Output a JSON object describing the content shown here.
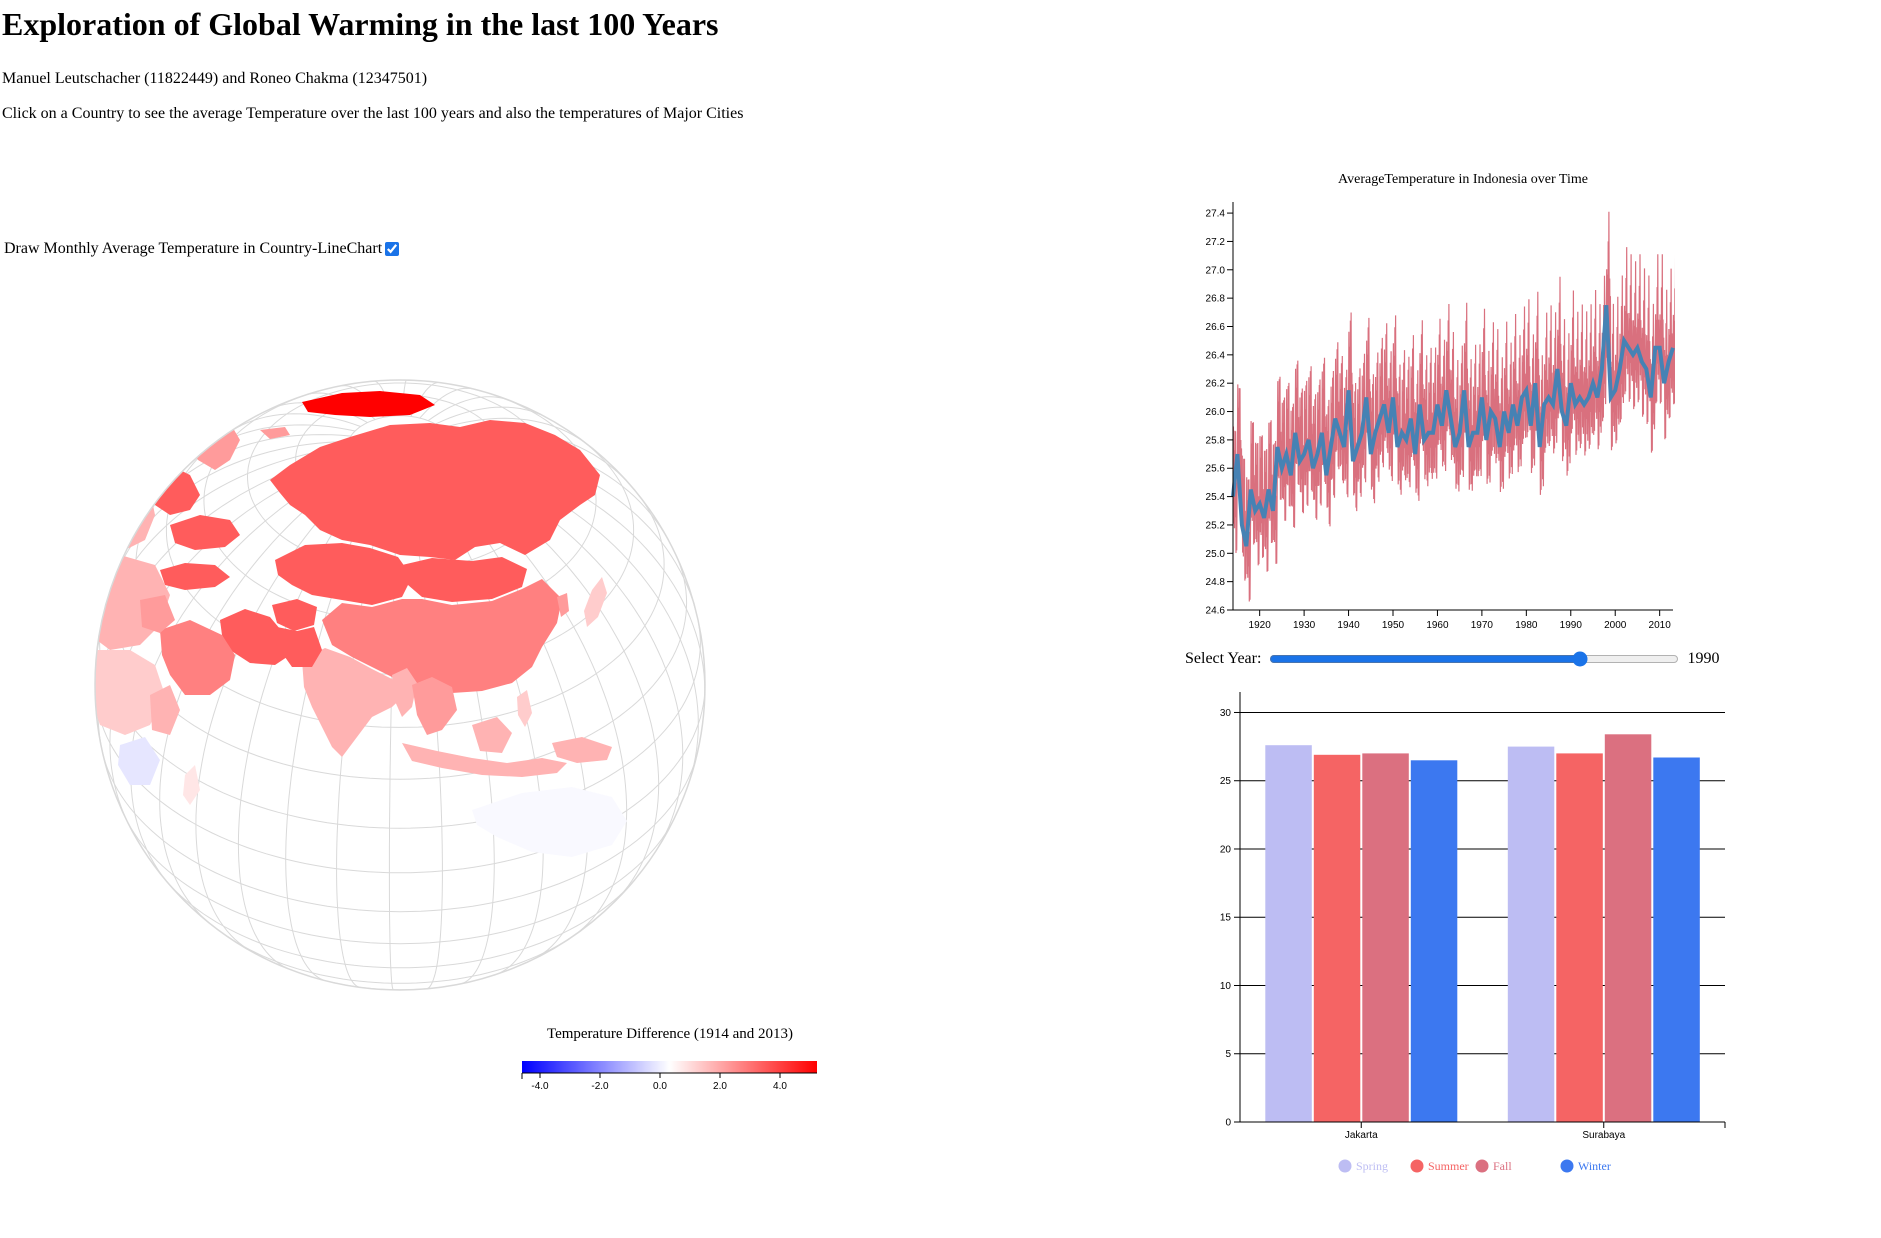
{
  "header": {
    "title": "Exploration of Global Warming in the last 100 Years",
    "authors": "Manuel Leutschacher (11822449) and Roneo Chakma (12347501)",
    "instructions": "Click on a Country to see the average Temperature over the last 100 years and also the temperatures of Major Cities"
  },
  "controls": {
    "draw_monthly_label": "Draw Monthly Average Temperature in Country-LineChart",
    "draw_monthly_checked": true,
    "year_label": "Select Year:",
    "year_value": "1990",
    "year_min": 1914,
    "year_max": 2013
  },
  "map": {
    "legend_title": "Temperature Difference (1914 and 2013)",
    "legend_ticks": [
      "-4.0",
      "-2.0",
      "0.0",
      "2.0",
      "4.0"
    ],
    "scale_colors": {
      "negative": "#0000ff",
      "zero": "#ffffff",
      "positive": "#ff0000"
    },
    "graticule_color": "#d9d9d9"
  },
  "chart_data": [
    {
      "type": "line",
      "title": "AverageTemperature in Indonesia over Time",
      "xlim": [
        1914,
        2013
      ],
      "ylim": [
        24.6,
        27.45
      ],
      "x_ticks": [
        "1920",
        "1930",
        "1940",
        "1950",
        "1960",
        "1970",
        "1980",
        "1990",
        "2000",
        "2010"
      ],
      "y_ticks": [
        "24.6",
        "24.8",
        "25.0",
        "25.2",
        "25.4",
        "25.6",
        "25.8",
        "26.0",
        "26.2",
        "26.4",
        "26.6",
        "26.8",
        "27.0",
        "27.2",
        "27.4"
      ],
      "monthly_color": "#d9707e",
      "yearly_color": "#4682b4",
      "series": [
        {
          "x": [
            1914,
            1915,
            1916,
            1917,
            1918,
            1919,
            1920,
            1921,
            1922,
            1923,
            1924,
            1925,
            1926,
            1927,
            1928,
            1929,
            1930,
            1931,
            1932,
            1933,
            1934,
            1935,
            1936,
            1937,
            1938,
            1939,
            1940,
            1941,
            1942,
            1943,
            1944,
            1945,
            1946,
            1947,
            1948,
            1949,
            1950,
            1951,
            1952,
            1953,
            1954,
            1955,
            1956,
            1957,
            1958,
            1959,
            1960,
            1961,
            1962,
            1963,
            1964,
            1965,
            1966,
            1967,
            1968,
            1969,
            1970,
            1971,
            1972,
            1973,
            1974,
            1975,
            1976,
            1977,
            1978,
            1979,
            1980,
            1981,
            1982,
            1983,
            1984,
            1985,
            1986,
            1987,
            1988,
            1989,
            1990,
            1991,
            1992,
            1993,
            1994,
            1995,
            1996,
            1997,
            1998,
            1999,
            2000,
            2001,
            2002,
            2003,
            2004,
            2005,
            2006,
            2007,
            2008,
            2009,
            2010,
            2011,
            2012,
            2013
          ],
          "values": [
            25.4,
            25.7,
            25.2,
            25.05,
            25.45,
            25.3,
            25.35,
            25.25,
            25.45,
            25.3,
            25.75,
            25.6,
            25.7,
            25.55,
            25.85,
            25.65,
            25.7,
            25.8,
            25.6,
            25.7,
            25.85,
            25.55,
            25.75,
            25.95,
            25.85,
            25.75,
            26.15,
            25.65,
            25.75,
            25.85,
            26.1,
            25.7,
            25.85,
            25.95,
            26.05,
            25.85,
            26.1,
            25.75,
            25.85,
            25.8,
            25.95,
            25.7,
            26.05,
            25.8,
            25.85,
            25.85,
            26.05,
            25.9,
            26.15,
            25.95,
            25.75,
            25.85,
            26.15,
            25.75,
            25.85,
            25.85,
            26.1,
            25.8,
            26.0,
            25.95,
            25.75,
            26.0,
            25.85,
            26.05,
            25.9,
            26.1,
            26.15,
            25.9,
            26.2,
            25.75,
            26.05,
            26.1,
            26.05,
            26.3,
            26.0,
            25.9,
            26.2,
            26.05,
            26.1,
            26.05,
            26.1,
            26.2,
            26.1,
            26.3,
            26.75,
            26.1,
            26.15,
            26.3,
            26.5,
            26.45,
            26.4,
            26.45,
            26.35,
            26.3,
            26.1,
            26.45,
            26.45,
            26.2,
            26.35,
            26.45
          ]
        }
      ]
    },
    {
      "type": "bar",
      "categories": [
        "Jakarta",
        "Surabaya"
      ],
      "ylim": [
        0,
        31.5
      ],
      "y_ticks": [
        "0",
        "5",
        "10",
        "15",
        "20",
        "25",
        "30"
      ],
      "legend_placement": "bottom",
      "series": [
        {
          "name": "Spring",
          "color": "#bdbdf3",
          "values": [
            27.6,
            27.5
          ]
        },
        {
          "name": "Summer",
          "color": "#f56464",
          "values": [
            26.9,
            27.0
          ]
        },
        {
          "name": "Fall",
          "color": "#db7080",
          "values": [
            27.0,
            28.4
          ]
        },
        {
          "name": "Winter",
          "color": "#3c78f0",
          "values": [
            26.5,
            26.7
          ]
        }
      ]
    }
  ]
}
